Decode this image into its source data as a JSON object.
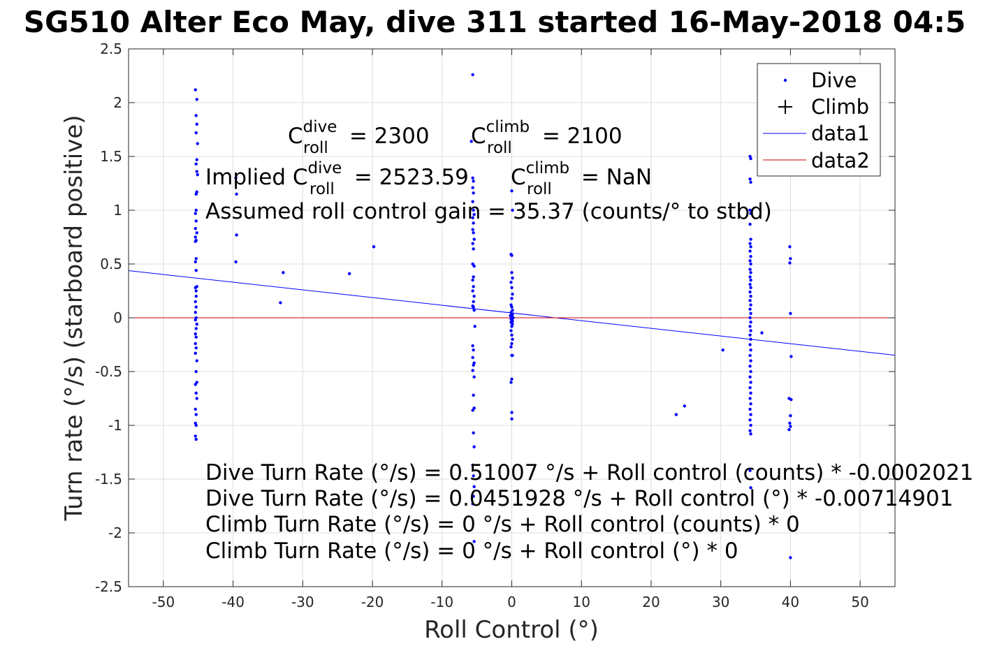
{
  "chart_data": {
    "type": "scatter",
    "title": "SG510 Alter Eco May, dive 311 started 16-May-2018 04:5",
    "xlabel": "Roll Control (°)",
    "ylabel": "Turn rate (°/s) (starboard positive)",
    "xlim": [
      -55,
      55
    ],
    "ylim": [
      -2.5,
      2.5
    ],
    "xticks": [
      -50,
      -40,
      -30,
      -20,
      -10,
      0,
      10,
      20,
      30,
      40,
      50
    ],
    "yticks": [
      2.5,
      2,
      1.5,
      1,
      0.5,
      0,
      -0.5,
      -1,
      -1.5,
      -2,
      -2.5
    ],
    "grid": true,
    "legend_position": "top-right",
    "legend": [
      {
        "label": "Dive",
        "marker": "dot",
        "color": "#0000ff"
      },
      {
        "label": "Climb",
        "marker": "plus",
        "color": "#000000"
      },
      {
        "label": "data1",
        "marker": "line",
        "color": "#0000ff"
      },
      {
        "label": "data2",
        "marker": "line",
        "color": "#cc0000"
      }
    ],
    "series": [
      {
        "name": "Dive",
        "color": "#0000ff",
        "points": [
          [
            -45.4,
            2.12
          ],
          [
            -45.2,
            2.03
          ],
          [
            -45.3,
            1.88
          ],
          [
            -45.2,
            1.8
          ],
          [
            -45.3,
            1.72
          ],
          [
            -45.1,
            1.62
          ],
          [
            -45.2,
            1.47
          ],
          [
            -45.3,
            1.43
          ],
          [
            -45.2,
            1.36
          ],
          [
            -45.1,
            1.33
          ],
          [
            -45.2,
            1.17
          ],
          [
            -45.3,
            1.15
          ],
          [
            -45.3,
            1.0
          ],
          [
            -45.4,
            0.97
          ],
          [
            -45.3,
            0.9
          ],
          [
            -45.4,
            0.83
          ],
          [
            -45.2,
            0.79
          ],
          [
            -45.4,
            0.75
          ],
          [
            -45.3,
            0.72
          ],
          [
            -45.4,
            0.71
          ],
          [
            -45.3,
            0.55
          ],
          [
            -45.4,
            0.52
          ],
          [
            -45.3,
            0.44
          ],
          [
            -45.2,
            0.29
          ],
          [
            -45.4,
            0.28
          ],
          [
            -45.3,
            0.25
          ],
          [
            -45.3,
            0.2
          ],
          [
            -45.4,
            0.15
          ],
          [
            -45.3,
            0.1
          ],
          [
            -45.4,
            0.05
          ],
          [
            -45.3,
            0.0
          ],
          [
            -45.4,
            -0.02
          ],
          [
            -45.2,
            -0.06
          ],
          [
            -45.3,
            -0.1
          ],
          [
            -45.4,
            -0.15
          ],
          [
            -45.3,
            -0.18
          ],
          [
            -45.4,
            -0.24
          ],
          [
            -45.3,
            -0.28
          ],
          [
            -45.4,
            -0.33
          ],
          [
            -45.2,
            -0.4
          ],
          [
            -45.3,
            -0.5
          ],
          [
            -45.2,
            -0.6
          ],
          [
            -45.4,
            -0.62
          ],
          [
            -45.3,
            -0.7
          ],
          [
            -45.2,
            -0.75
          ],
          [
            -45.4,
            -0.85
          ],
          [
            -45.3,
            -0.9
          ],
          [
            -45.4,
            -0.98
          ],
          [
            -45.3,
            -1.0
          ],
          [
            -45.4,
            -1.1
          ],
          [
            -45.3,
            -1.13
          ],
          [
            -39.6,
            1.3
          ],
          [
            -39.5,
            1.15
          ],
          [
            -39.5,
            0.77
          ],
          [
            -39.6,
            0.52
          ],
          [
            -32.8,
            0.42
          ],
          [
            -33.2,
            0.14
          ],
          [
            -23.3,
            0.41
          ],
          [
            -19.8,
            0.66
          ],
          [
            -5.6,
            2.26
          ],
          [
            -5.8,
            1.64
          ],
          [
            -5.6,
            1.3
          ],
          [
            -5.5,
            1.27
          ],
          [
            -5.6,
            1.21
          ],
          [
            -5.5,
            1.16
          ],
          [
            -5.6,
            1.08
          ],
          [
            -5.5,
            1.0
          ],
          [
            -5.4,
            0.96
          ],
          [
            -5.6,
            0.93
          ],
          [
            -5.5,
            0.88
          ],
          [
            -5.6,
            0.82
          ],
          [
            -5.5,
            0.79
          ],
          [
            -5.4,
            0.73
          ],
          [
            -5.6,
            0.69
          ],
          [
            -5.5,
            0.64
          ],
          [
            -5.6,
            0.5
          ],
          [
            -5.4,
            0.48
          ],
          [
            -5.5,
            0.38
          ],
          [
            -5.6,
            0.35
          ],
          [
            -5.5,
            0.29
          ],
          [
            -5.6,
            0.25
          ],
          [
            -5.4,
            0.2
          ],
          [
            -5.5,
            0.15
          ],
          [
            -5.6,
            0.11
          ],
          [
            -5.5,
            0.1
          ],
          [
            -5.4,
            0.07
          ],
          [
            -5.3,
            -0.08
          ],
          [
            -5.6,
            -0.26
          ],
          [
            -5.5,
            -0.3
          ],
          [
            -5.6,
            -0.37
          ],
          [
            -5.4,
            -0.42
          ],
          [
            -5.5,
            -0.44
          ],
          [
            -5.6,
            -0.49
          ],
          [
            -5.4,
            -0.55
          ],
          [
            -5.5,
            -0.72
          ],
          [
            -5.4,
            -0.84
          ],
          [
            -5.6,
            -0.86
          ],
          [
            -5.5,
            -1.07
          ],
          [
            -5.4,
            -1.2
          ],
          [
            -5.6,
            -1.37
          ],
          [
            -5.5,
            -1.47
          ],
          [
            -5.4,
            -1.57
          ],
          [
            -5.5,
            -1.66
          ],
          [
            -5.6,
            -1.73
          ],
          [
            -5.4,
            -2.08
          ],
          [
            0.0,
            1.18
          ],
          [
            0.1,
            1.0
          ],
          [
            -0.1,
            0.59
          ],
          [
            0.0,
            0.58
          ],
          [
            0.0,
            0.42
          ],
          [
            0.1,
            0.37
          ],
          [
            -0.1,
            0.33
          ],
          [
            0.0,
            0.28
          ],
          [
            0.1,
            0.22
          ],
          [
            0.0,
            0.18
          ],
          [
            -0.1,
            0.12
          ],
          [
            0.0,
            0.1
          ],
          [
            0.1,
            0.07
          ],
          [
            -0.1,
            0.05
          ],
          [
            0.0,
            0.04
          ],
          [
            0.1,
            0.03
          ],
          [
            -0.2,
            0.02
          ],
          [
            0.0,
            0.01
          ],
          [
            0.2,
            0.0
          ],
          [
            -0.1,
            -0.01
          ],
          [
            0.0,
            -0.02
          ],
          [
            0.1,
            -0.03
          ],
          [
            -0.1,
            -0.04
          ],
          [
            0.0,
            -0.05
          ],
          [
            0.1,
            -0.06
          ],
          [
            0.0,
            -0.08
          ],
          [
            -0.1,
            -0.12
          ],
          [
            0.0,
            -0.16
          ],
          [
            0.1,
            -0.2
          ],
          [
            0.0,
            -0.24
          ],
          [
            -0.1,
            -0.27
          ],
          [
            0.0,
            -0.35
          ],
          [
            0.1,
            -0.35
          ],
          [
            0.0,
            -0.57
          ],
          [
            -0.1,
            -0.6
          ],
          [
            0.0,
            -0.88
          ],
          [
            0.0,
            -0.94
          ],
          [
            23.6,
            -0.9
          ],
          [
            24.8,
            -0.82
          ],
          [
            30.3,
            -0.3
          ],
          [
            35.9,
            -0.14
          ],
          [
            34.2,
            1.5
          ],
          [
            34.3,
            1.48
          ],
          [
            34.2,
            1.29
          ],
          [
            34.3,
            1.26
          ],
          [
            34.2,
            1.0
          ],
          [
            34.3,
            0.97
          ],
          [
            34.2,
            0.87
          ],
          [
            34.3,
            0.73
          ],
          [
            34.2,
            0.69
          ],
          [
            34.3,
            0.66
          ],
          [
            34.2,
            0.62
          ],
          [
            34.3,
            0.57
          ],
          [
            34.2,
            0.53
          ],
          [
            34.3,
            0.5
          ],
          [
            34.2,
            0.45
          ],
          [
            34.3,
            0.42
          ],
          [
            34.2,
            0.38
          ],
          [
            34.3,
            0.35
          ],
          [
            34.2,
            0.31
          ],
          [
            34.3,
            0.28
          ],
          [
            34.2,
            0.24
          ],
          [
            34.3,
            0.2
          ],
          [
            34.2,
            0.16
          ],
          [
            34.3,
            0.12
          ],
          [
            34.2,
            0.08
          ],
          [
            34.3,
            0.04
          ],
          [
            34.2,
            0.0
          ],
          [
            34.3,
            -0.04
          ],
          [
            34.2,
            -0.08
          ],
          [
            34.3,
            -0.12
          ],
          [
            34.2,
            -0.16
          ],
          [
            34.3,
            -0.2
          ],
          [
            34.2,
            -0.25
          ],
          [
            34.3,
            -0.3
          ],
          [
            34.2,
            -0.35
          ],
          [
            34.3,
            -0.4
          ],
          [
            34.2,
            -0.45
          ],
          [
            34.3,
            -0.5
          ],
          [
            34.2,
            -0.55
          ],
          [
            34.3,
            -0.6
          ],
          [
            34.2,
            -0.65
          ],
          [
            34.3,
            -0.7
          ],
          [
            34.2,
            -0.75
          ],
          [
            34.3,
            -0.8
          ],
          [
            34.2,
            -0.85
          ],
          [
            34.3,
            -0.9
          ],
          [
            34.2,
            -0.95
          ],
          [
            34.3,
            -1.0
          ],
          [
            34.2,
            -1.05
          ],
          [
            34.3,
            -1.08
          ],
          [
            34.2,
            -1.42
          ],
          [
            34.3,
            -1.58
          ],
          [
            39.9,
            0.66
          ],
          [
            40.0,
            0.55
          ],
          [
            39.9,
            0.51
          ],
          [
            40.0,
            0.04
          ],
          [
            40.1,
            -0.36
          ],
          [
            39.8,
            -0.75
          ],
          [
            40.1,
            -0.76
          ],
          [
            40.0,
            -0.91
          ],
          [
            39.9,
            -0.98
          ],
          [
            40.0,
            -1.01
          ],
          [
            39.8,
            -1.04
          ],
          [
            40.0,
            -2.23
          ]
        ]
      },
      {
        "name": "data1",
        "color": "#0000ff",
        "line": [
          [
            -55,
            0.438
          ],
          [
            55,
            -0.348
          ]
        ]
      },
      {
        "name": "data2",
        "color": "#cc0000",
        "line": [
          [
            -55,
            0
          ],
          [
            55,
            0
          ]
        ]
      }
    ],
    "annotations": {
      "cdive": {
        "c": "C",
        "sub": "roll",
        "sup": "dive",
        "rest": " = 2300"
      },
      "cclimb": {
        "c": "C",
        "sub": "roll",
        "sup": "climb",
        "rest": " = 2100"
      },
      "implied_prefix": "Implied C",
      "implied_dive": {
        "sub": "roll",
        "sup": "dive",
        "rest": " = 2523.59"
      },
      "implied_climb": {
        "c": "C",
        "sub": "roll",
        "sup": "climb",
        "rest": " = NaN"
      },
      "gain": "Assumed roll control gain = 35.37 (counts/° to stbd)",
      "eq1": "Dive Turn Rate (°/s) = 0.51007 °/s + Roll control (counts) * -0.0002021",
      "eq2": "Dive Turn Rate (°/s) = 0.0451928 °/s + Roll control (°) * -0.00714901",
      "eq3": "Climb Turn Rate (°/s) = 0 °/s + Roll control (counts) * 0",
      "eq4": "Climb Turn Rate (°/s) = 0 °/s + Roll control (°) * 0"
    }
  }
}
